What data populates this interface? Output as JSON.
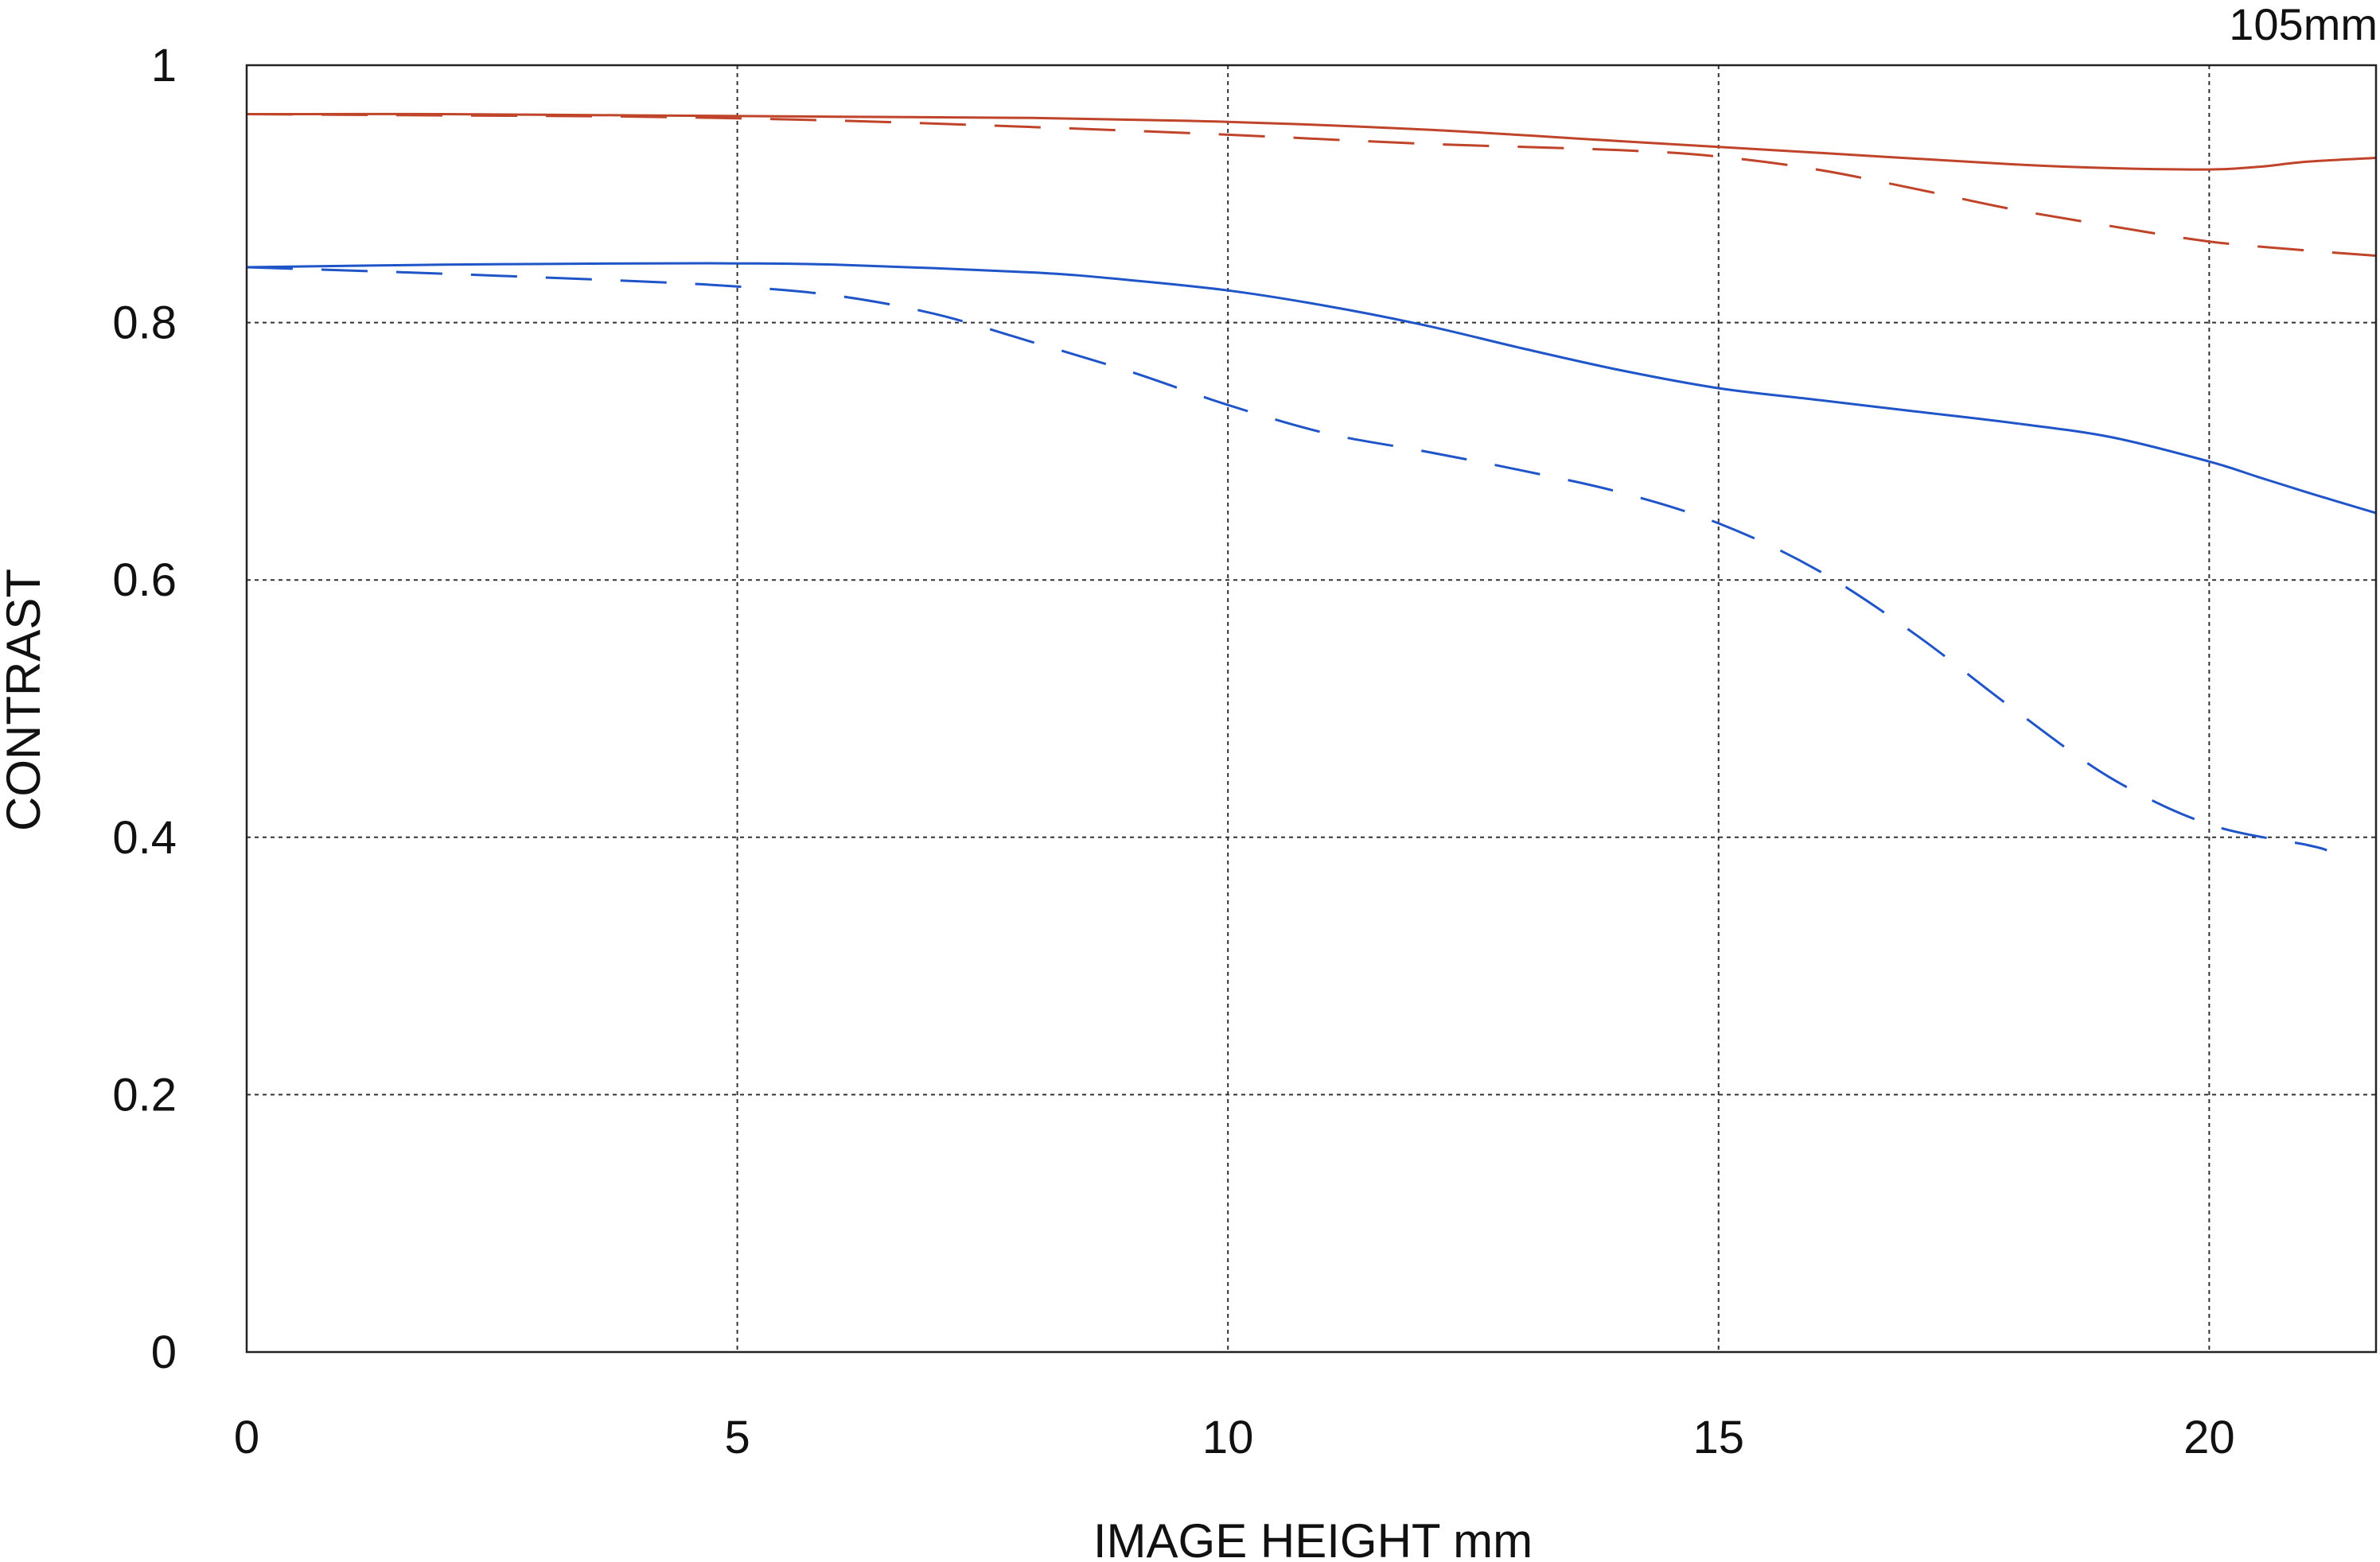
{
  "chart_data": {
    "type": "line",
    "title": "105mm",
    "xlabel": "IMAGE HEIGHT  mm",
    "ylabel": "CONTRAST",
    "xlim": [
      0,
      21.7
    ],
    "ylim": [
      0,
      1
    ],
    "grid": true,
    "legend": "none",
    "x_ticks": [
      {
        "value": 0,
        "label": "0"
      },
      {
        "value": 5,
        "label": "5"
      },
      {
        "value": 10,
        "label": "10"
      },
      {
        "value": 15,
        "label": "15"
      },
      {
        "value": 20,
        "label": "20"
      }
    ],
    "y_ticks": [
      {
        "value": 0,
        "label": "0"
      },
      {
        "value": 0.2,
        "label": "0.2"
      },
      {
        "value": 0.4,
        "label": "0.4"
      },
      {
        "value": 0.6,
        "label": "0.6"
      },
      {
        "value": 0.8,
        "label": "0.8"
      },
      {
        "value": 1,
        "label": "1"
      }
    ],
    "series": [
      {
        "color": "#c0442a",
        "style": "solid",
        "x": [
          0,
          2,
          4,
          6,
          8,
          10,
          12,
          14,
          16,
          18,
          19,
          20,
          20.5,
          21,
          21.7
        ],
        "y": [
          0.962,
          0.962,
          0.961,
          0.96,
          0.959,
          0.956,
          0.95,
          0.941,
          0.932,
          0.923,
          0.92,
          0.919,
          0.921,
          0.925,
          0.928
        ]
      },
      {
        "color": "#c0442a",
        "style": "dashed",
        "x": [
          0,
          2,
          4,
          6,
          8,
          10,
          12,
          14,
          15,
          16,
          17,
          18,
          19,
          20,
          21,
          21.7
        ],
        "y": [
          0.962,
          0.961,
          0.96,
          0.957,
          0.952,
          0.946,
          0.939,
          0.934,
          0.929,
          0.919,
          0.904,
          0.888,
          0.875,
          0.863,
          0.856,
          0.852
        ]
      },
      {
        "color": "#1f55c8",
        "style": "solid",
        "x": [
          0,
          2,
          4,
          5,
          6,
          8,
          9,
          10,
          11,
          12,
          13,
          14,
          15,
          16,
          17,
          18,
          19,
          20,
          20.5,
          21,
          21.7
        ],
        "y": [
          0.843,
          0.845,
          0.846,
          0.846,
          0.845,
          0.839,
          0.833,
          0.825,
          0.813,
          0.798,
          0.78,
          0.763,
          0.749,
          0.74,
          0.731,
          0.722,
          0.711,
          0.692,
          0.68,
          0.668,
          0.652
        ]
      },
      {
        "color": "#1f55c8",
        "style": "dashed",
        "x": [
          0,
          2,
          4,
          5,
          6,
          7,
          8,
          9,
          10,
          11,
          12,
          13,
          14,
          15,
          16,
          17,
          18,
          19,
          20,
          21,
          21.2
        ],
        "y": [
          0.843,
          0.838,
          0.832,
          0.828,
          0.821,
          0.807,
          0.785,
          0.762,
          0.736,
          0.714,
          0.7,
          0.685,
          0.668,
          0.644,
          0.608,
          0.558,
          0.5,
          0.446,
          0.41,
          0.394,
          0.39
        ]
      }
    ]
  }
}
